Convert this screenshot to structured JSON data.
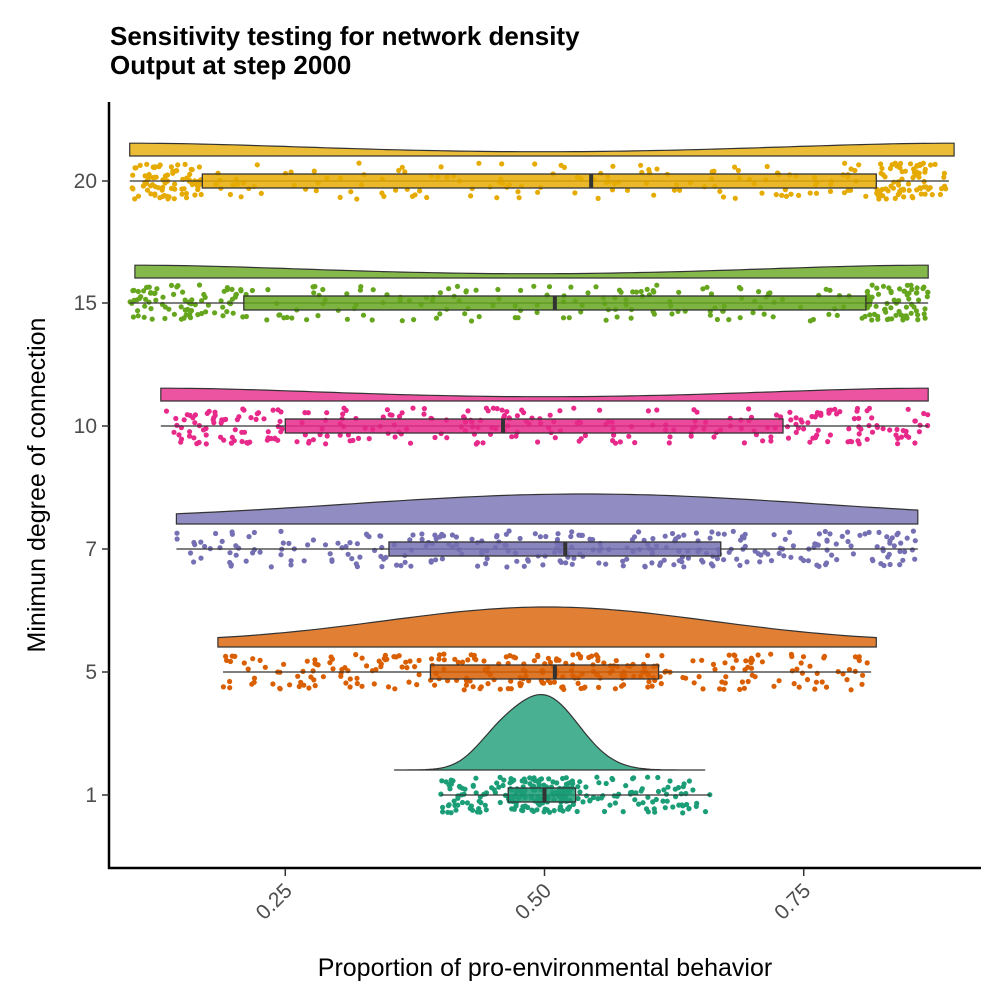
{
  "chart_data": {
    "type": "raincloud",
    "title": "Sensitivity testing for network density",
    "subtitle": "Output at step 2000",
    "xlabel": "Proportion of pro-environmental behavior",
    "ylabel": "Minimun degree of connection",
    "xlim": [
      0.08,
      0.92
    ],
    "x_ticks": [
      "0.25",
      "0.50",
      "0.75"
    ],
    "x_tick_values": [
      0.25,
      0.5,
      0.75
    ],
    "grid": false,
    "legend": "none",
    "categories": [
      "1",
      "5",
      "7",
      "10",
      "15",
      "20"
    ],
    "series": [
      {
        "category": "1",
        "color": "#1B9E77",
        "min": 0.4,
        "q1": 0.465,
        "median": 0.5,
        "q3": 0.53,
        "max": 0.66,
        "density_range": [
          0.355,
          0.655
        ],
        "density_shape": "peaked"
      },
      {
        "category": "5",
        "color": "#D95F02",
        "min": 0.19,
        "q1": 0.39,
        "median": 0.51,
        "q3": 0.61,
        "max": 0.815,
        "density_range": [
          0.185,
          0.82
        ],
        "density_shape": "broad"
      },
      {
        "category": "7",
        "color": "#7570B3",
        "min": 0.145,
        "q1": 0.35,
        "median": 0.52,
        "q3": 0.67,
        "max": 0.86,
        "density_range": [
          0.145,
          0.86
        ],
        "density_shape": "flat"
      },
      {
        "category": "10",
        "color": "#E7298A",
        "min": 0.13,
        "q1": 0.25,
        "median": 0.46,
        "q3": 0.73,
        "max": 0.87,
        "density_range": [
          0.13,
          0.87
        ],
        "density_shape": "bimodal"
      },
      {
        "category": "15",
        "color": "#66A61E",
        "min": 0.1,
        "q1": 0.21,
        "median": 0.51,
        "q3": 0.81,
        "max": 0.87,
        "density_range": [
          0.105,
          0.87
        ],
        "density_shape": "bimodal"
      },
      {
        "category": "20",
        "color": "#E6AB02",
        "min": 0.1,
        "q1": 0.17,
        "median": 0.545,
        "q3": 0.82,
        "max": 0.89,
        "density_range": [
          0.1,
          0.895
        ],
        "density_shape": "bimodal"
      }
    ]
  }
}
